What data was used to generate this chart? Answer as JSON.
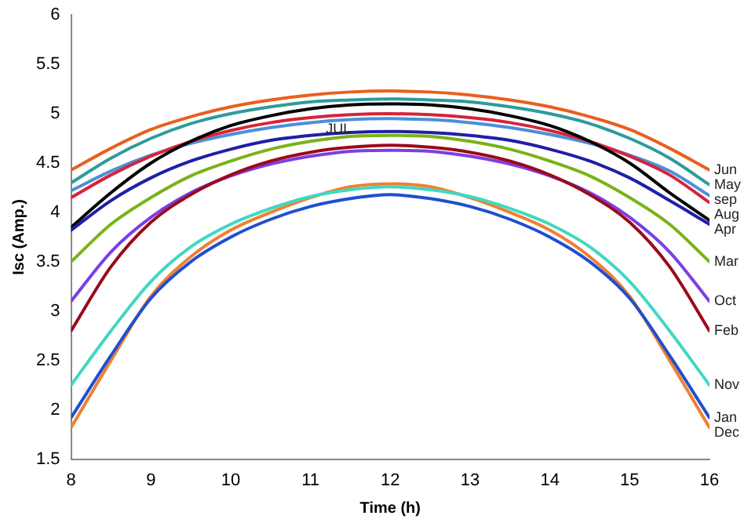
{
  "chart_data": {
    "type": "line",
    "xlabel": "Time (h)",
    "ylabel": "Isc (Amp.)",
    "x": [
      8,
      8.5,
      9,
      9.5,
      10,
      10.5,
      11,
      11.5,
      12,
      12.5,
      13,
      13.5,
      14,
      14.5,
      15,
      15.5,
      16
    ],
    "xlim": [
      8,
      16
    ],
    "xticks": [
      8,
      9,
      10,
      11,
      12,
      13,
      14,
      15,
      16
    ],
    "ylim": [
      1.5,
      6
    ],
    "yticks": [
      1.5,
      2,
      2.5,
      3,
      3.5,
      4,
      4.5,
      5,
      5.5,
      6
    ],
    "grid": false,
    "legend": false,
    "marker": "none",
    "line_style": "solid",
    "series": [
      {
        "name": "Jan",
        "color": "#1f4fd0",
        "values": [
          1.92,
          2.55,
          3.13,
          3.5,
          3.75,
          3.93,
          4.06,
          4.14,
          4.18,
          4.14,
          4.06,
          3.93,
          3.75,
          3.5,
          3.13,
          2.55,
          1.92
        ]
      },
      {
        "name": "Feb",
        "color": "#9b0a1a",
        "values": [
          2.8,
          3.45,
          3.9,
          4.18,
          4.38,
          4.52,
          4.61,
          4.66,
          4.68,
          4.66,
          4.61,
          4.52,
          4.38,
          4.18,
          3.9,
          3.45,
          2.8
        ]
      },
      {
        "name": "Mar",
        "color": "#7ab317",
        "values": [
          3.5,
          3.88,
          4.15,
          4.37,
          4.52,
          4.64,
          4.72,
          4.77,
          4.78,
          4.77,
          4.72,
          4.64,
          4.52,
          4.37,
          4.15,
          3.88,
          3.5
        ]
      },
      {
        "name": "Apr",
        "color": "#1f1fa8",
        "values": [
          3.82,
          4.12,
          4.35,
          4.52,
          4.64,
          4.73,
          4.78,
          4.81,
          4.82,
          4.81,
          4.78,
          4.73,
          4.64,
          4.52,
          4.35,
          4.12,
          3.88
        ]
      },
      {
        "name": "May",
        "color": "#2e9b9b",
        "values": [
          4.3,
          4.55,
          4.75,
          4.9,
          5,
          5.07,
          5.12,
          5.14,
          5.15,
          5.14,
          5.12,
          5.07,
          5,
          4.9,
          4.75,
          4.55,
          4.28
        ]
      },
      {
        "name": "Jun",
        "color": "#e8601c",
        "values": [
          4.43,
          4.65,
          4.84,
          4.97,
          5.07,
          5.14,
          5.19,
          5.22,
          5.23,
          5.22,
          5.19,
          5.14,
          5.07,
          4.97,
          4.84,
          4.65,
          4.43
        ]
      },
      {
        "color": "#000000",
        "values": [
          3.85,
          4.2,
          4.5,
          4.72,
          4.88,
          4.98,
          5.05,
          5.09,
          5.1,
          5.09,
          5.05,
          4.98,
          4.88,
          4.72,
          4.5,
          4.2,
          3.92
        ]
      },
      {
        "name": "Aug",
        "color": "#d6243a",
        "values": [
          4.15,
          4.38,
          4.57,
          4.72,
          4.83,
          4.91,
          4.96,
          4.99,
          5,
          4.99,
          4.96,
          4.91,
          4.83,
          4.72,
          4.57,
          4.38,
          4.1
        ]
      },
      {
        "name": "sep",
        "color": "#4a90d9",
        "values": [
          4.22,
          4.42,
          4.58,
          4.7,
          4.79,
          4.86,
          4.91,
          4.94,
          4.95,
          4.94,
          4.91,
          4.86,
          4.79,
          4.7,
          4.58,
          4.42,
          4.17
        ]
      },
      {
        "name": "Oct",
        "color": "#7b3fe4",
        "values": [
          3.1,
          3.6,
          3.95,
          4.2,
          4.37,
          4.49,
          4.57,
          4.62,
          4.63,
          4.62,
          4.57,
          4.49,
          4.37,
          4.2,
          3.95,
          3.6,
          3.1
        ]
      },
      {
        "name": "Nov",
        "color": "#40d8c0",
        "values": [
          2.25,
          2.8,
          3.3,
          3.65,
          3.88,
          4.04,
          4.16,
          4.23,
          4.26,
          4.23,
          4.16,
          4.04,
          3.88,
          3.65,
          3.3,
          2.8,
          2.25
        ]
      },
      {
        "name": "Dec",
        "color": "#f08030",
        "values": [
          1.82,
          2.5,
          3.15,
          3.55,
          3.82,
          4,
          4.15,
          4.26,
          4.29,
          4.26,
          4.15,
          4,
          3.82,
          3.55,
          3.15,
          2.5,
          1.82
        ]
      }
    ],
    "annotations": [
      {
        "text": "JUL",
        "x": 11.35,
        "y": 4.91
      }
    ]
  }
}
